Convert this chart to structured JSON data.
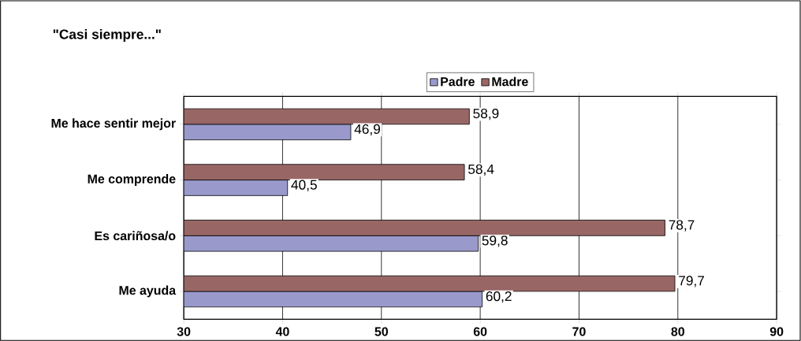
{
  "chart_data": {
    "type": "bar",
    "orientation": "horizontal",
    "title": "\"Casi siempre...\"",
    "categories": [
      "Me hace sentir mejor",
      "Me comprende",
      "Es cariñosa/o",
      "Me ayuda"
    ],
    "series": [
      {
        "name": "Padre",
        "color": "#9999cc",
        "values": [
          46.9,
          40.5,
          59.8,
          60.2
        ],
        "value_labels": [
          "46,9",
          "40,5",
          "59,8",
          "60,2"
        ]
      },
      {
        "name": "Madre",
        "color": "#996666",
        "values": [
          58.9,
          58.4,
          78.7,
          79.7
        ],
        "value_labels": [
          "58,9",
          "58,4",
          "78,7",
          "79,7"
        ]
      }
    ],
    "xlim": [
      30,
      90
    ],
    "xticks": [
      30,
      40,
      50,
      60,
      70,
      80,
      90
    ],
    "grid": "x",
    "legend": "top"
  }
}
